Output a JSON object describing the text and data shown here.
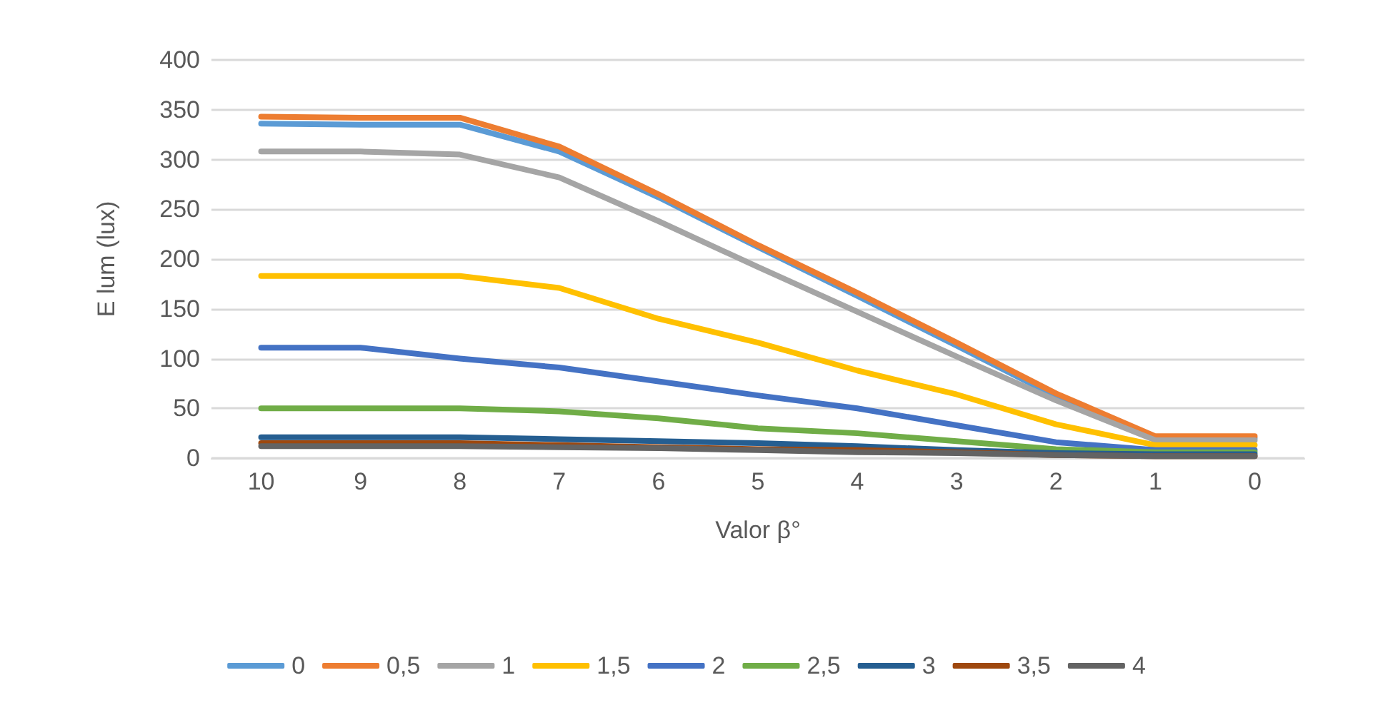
{
  "chart_data": {
    "type": "line",
    "xlabel": "Valor β°",
    "ylabel": "E lum (lux)",
    "categories": [
      "10",
      "9",
      "8",
      "7",
      "6",
      "5",
      "4",
      "3",
      "2",
      "1",
      "0"
    ],
    "ylim": [
      0,
      400
    ],
    "yticks": [
      0,
      50,
      100,
      150,
      200,
      250,
      300,
      350,
      400
    ],
    "grid": "y",
    "legend": "bottom",
    "marker": "none",
    "line_style": "solid",
    "series": [
      {
        "name": "0",
        "color": "#5b9bd5",
        "values": [
          336,
          335,
          335,
          308,
          262,
          212,
          163,
          113,
          62,
          20,
          20
        ]
      },
      {
        "name": "0,5",
        "color": "#ed7d31",
        "values": [
          343,
          342,
          342,
          313,
          265,
          214,
          166,
          116,
          65,
          22,
          22
        ]
      },
      {
        "name": "1",
        "color": "#a5a5a5",
        "values": [
          308,
          308,
          305,
          282,
          238,
          192,
          147,
          102,
          58,
          18,
          18
        ]
      },
      {
        "name": "1,5",
        "color": "#ffc000",
        "values": [
          183,
          183,
          183,
          171,
          140,
          116,
          88,
          64,
          34,
          13,
          13
        ]
      },
      {
        "name": "2",
        "color": "#4472c4",
        "values": [
          111,
          111,
          100,
          91,
          77,
          63,
          50,
          33,
          16,
          8,
          8
        ]
      },
      {
        "name": "2,5",
        "color": "#70ad47",
        "values": [
          50,
          50,
          50,
          47,
          40,
          30,
          25,
          17,
          9,
          6,
          6
        ]
      },
      {
        "name": "3",
        "color": "#255e91",
        "values": [
          21,
          21,
          21,
          19,
          17,
          15,
          12,
          8,
          5,
          4,
          4
        ]
      },
      {
        "name": "3,5",
        "color": "#9e480e",
        "values": [
          15,
          15,
          15,
          13,
          11,
          9,
          8,
          6,
          3,
          2,
          2
        ]
      },
      {
        "name": "4",
        "color": "#636363",
        "values": [
          12,
          12,
          12,
          11,
          10,
          8,
          6,
          5,
          3,
          2,
          2
        ]
      }
    ]
  }
}
